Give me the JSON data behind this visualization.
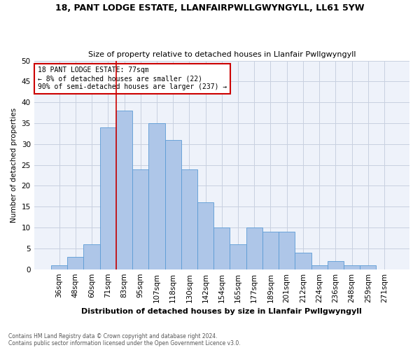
{
  "title1": "18, PANT LODGE ESTATE, LLANFAIRPWLLGWYNGYLL, LL61 5YW",
  "title2": "Size of property relative to detached houses in Llanfair Pwllgwyngyll",
  "xlabel": "Distribution of detached houses by size in Llanfair Pwllgwyngyll",
  "ylabel": "Number of detached properties",
  "footnote": "Contains HM Land Registry data © Crown copyright and database right 2024.\nContains public sector information licensed under the Open Government Licence v3.0.",
  "bar_labels": [
    "36sqm",
    "48sqm",
    "60sqm",
    "71sqm",
    "83sqm",
    "95sqm",
    "107sqm",
    "118sqm",
    "130sqm",
    "142sqm",
    "154sqm",
    "165sqm",
    "177sqm",
    "189sqm",
    "201sqm",
    "212sqm",
    "224sqm",
    "236sqm",
    "248sqm",
    "259sqm",
    "271sqm"
  ],
  "bar_values": [
    1,
    3,
    6,
    34,
    38,
    24,
    35,
    31,
    24,
    16,
    10,
    6,
    10,
    9,
    9,
    4,
    1,
    2,
    1,
    1,
    0
  ],
  "bar_color": "#aec6e8",
  "bar_edge_color": "#5b9bd5",
  "property_line_x": 3.5,
  "annotation_line1": "18 PANT LODGE ESTATE: 77sqm",
  "annotation_line2": "← 8% of detached houses are smaller (22)",
  "annotation_line3": "90% of semi-detached houses are larger (237) →",
  "annotation_box_color": "#ffffff",
  "annotation_box_edge": "#cc0000",
  "vertical_line_color": "#cc0000",
  "ylim": [
    0,
    50
  ],
  "yticks": [
    0,
    5,
    10,
    15,
    20,
    25,
    30,
    35,
    40,
    45,
    50
  ],
  "grid_color": "#c8d0e0",
  "background_color": "#ffffff",
  "ax_background_color": "#eef2fa"
}
